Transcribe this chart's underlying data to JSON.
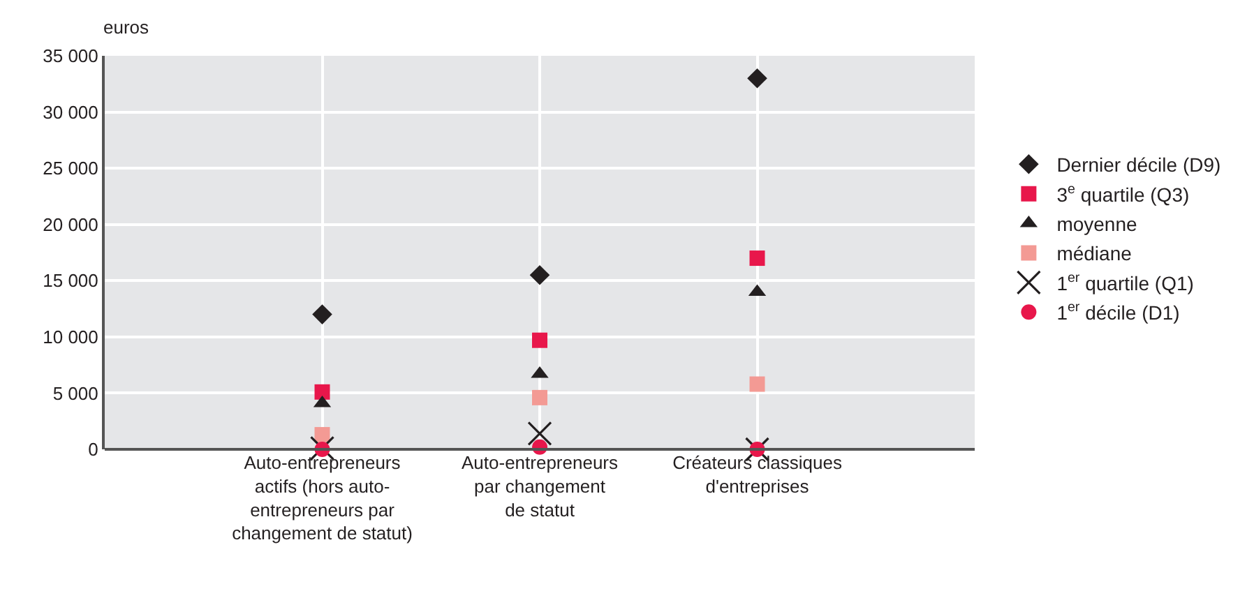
{
  "chart_data": {
    "type": "scatter",
    "ylabel": "euros",
    "categories": [
      "Auto-entrepreneurs\nactifs (hors auto-\nentrepreneurs par\nchangement de statut)",
      "Auto-entrepreneurs\npar changement\nde statut",
      "Créateurs classiques\nd'entreprises"
    ],
    "series": [
      {
        "name": "Dernier décile (D9)",
        "color": "#231f20",
        "marker": "diamond",
        "values": [
          12000,
          15500,
          33000
        ]
      },
      {
        "name": "3$^{e}$ quartile (Q3)",
        "color": "#e8174b",
        "marker": "square",
        "values": [
          5100,
          9700,
          17000
        ]
      },
      {
        "name": "moyenne",
        "color": "#231f20",
        "marker": "triangle",
        "values": [
          4100,
          6700,
          14000
        ]
      },
      {
        "name": "médiane",
        "color": "#f39a94",
        "marker": "square",
        "values": [
          1300,
          4600,
          5800
        ]
      },
      {
        "name": "1$^{er}$ quartile (Q1)",
        "color": "#231f20",
        "marker": "cross",
        "values": [
          100,
          1400,
          0
        ]
      },
      {
        "name": "1$^{er}$ décile (D1)",
        "color": "#e8174b",
        "marker": "circle",
        "values": [
          0,
          200,
          0
        ]
      }
    ],
    "ylim": [
      0,
      35000
    ],
    "yticks": [
      {
        "value": 0,
        "label": "0"
      },
      {
        "value": 5000,
        "label": "5 000"
      },
      {
        "value": 10000,
        "label": "10 000"
      },
      {
        "value": 15000,
        "label": "15 000"
      },
      {
        "value": 20000,
        "label": "20 000"
      },
      {
        "value": 25000,
        "label": "25 000"
      },
      {
        "value": 30000,
        "label": "30 000"
      },
      {
        "value": 35000,
        "label": "35 000"
      }
    ],
    "grid": true,
    "legend": "right"
  }
}
